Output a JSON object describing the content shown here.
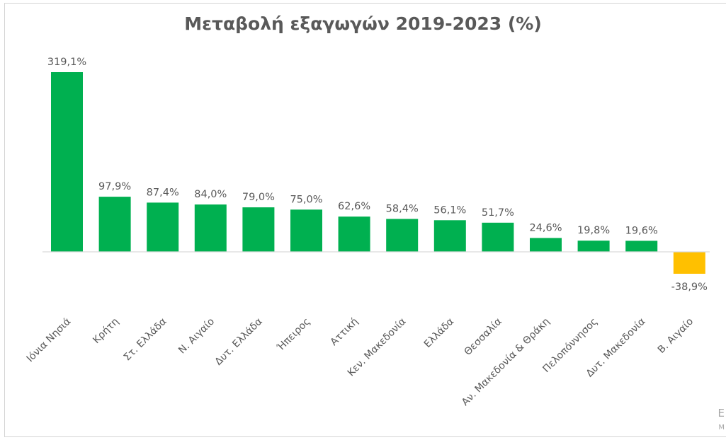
{
  "chart_data": {
    "type": "bar",
    "title": "Μεταβολή εξαγωγών 2019-2023 (%)",
    "categories": [
      "Ιόνια Νησιά",
      "Κρήτη",
      "Στ. Ελλάδα",
      "Ν. Αιγαίο",
      "Δυτ. Ελλάδα",
      "Ήπειρος",
      "Αττική",
      "Κεν. Μακεδονία",
      "Ελλάδα",
      "Θεσσαλία",
      "Αν. Μακεδονία & Θράκη",
      "Πελοπόννησος",
      "Δυτ. Μακεδονία",
      "Β. Αιγαίο"
    ],
    "values": [
      319.1,
      97.9,
      87.4,
      84.0,
      79.0,
      75.0,
      62.6,
      58.4,
      56.1,
      51.7,
      24.6,
      19.8,
      19.6,
      -38.9
    ],
    "data_labels": [
      "319,1%",
      "97,9%",
      "87,4%",
      "84,0%",
      "79,0%",
      "75,0%",
      "62,6%",
      "58,4%",
      "56,1%",
      "51,7%",
      "24,6%",
      "19,8%",
      "19,6%",
      "-38,9%"
    ],
    "colors": {
      "positive": "#00b050",
      "negative": "#ffc000",
      "axis": "#d9d9d9",
      "text": "#595959"
    },
    "grid": false,
    "legend": "none",
    "ylim": [
      -40,
      320
    ]
  },
  "footer": {
    "corner_line_1": "Ε",
    "corner_line_2": "Μ"
  }
}
